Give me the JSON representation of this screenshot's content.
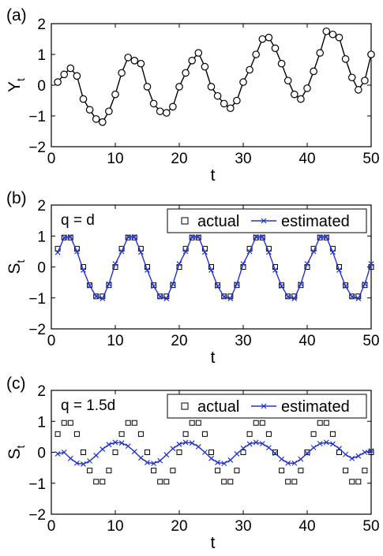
{
  "chart_data": [
    {
      "type": "line",
      "panel_label": "(a)",
      "xlabel": "t",
      "ylabel": "Y",
      "ylabel_sub": "t",
      "xlim": [
        0,
        50
      ],
      "ylim": [
        -2,
        2
      ],
      "xticks": [
        0,
        10,
        20,
        30,
        40,
        50
      ],
      "yticks": [
        -2,
        -1,
        0,
        1,
        2
      ],
      "xtick_labels": [
        "0",
        "10",
        "20",
        "30",
        "40",
        "50"
      ],
      "ytick_labels": [
        "−2",
        "−1",
        "0",
        "1",
        "2"
      ],
      "grid": false,
      "series": [
        {
          "marker": "circle",
          "color": "#000000",
          "x": [
            1,
            2,
            3,
            4,
            5,
            6,
            7,
            8,
            9,
            10,
            11,
            12,
            13,
            14,
            15,
            16,
            17,
            18,
            19,
            20,
            21,
            22,
            23,
            24,
            25,
            26,
            27,
            28,
            29,
            30,
            31,
            32,
            33,
            34,
            35,
            36,
            37,
            38,
            39,
            40,
            41,
            42,
            43,
            44,
            45,
            46,
            47,
            48,
            49,
            50
          ],
          "y": [
            0.1,
            0.35,
            0.55,
            0.3,
            -0.45,
            -0.8,
            -1.1,
            -1.2,
            -0.85,
            -0.3,
            0.4,
            0.9,
            0.8,
            0.7,
            -0.05,
            -0.6,
            -0.85,
            -0.9,
            -0.7,
            -0.05,
            0.4,
            0.8,
            1.05,
            0.6,
            -0.05,
            -0.35,
            -0.6,
            -0.75,
            -0.5,
            0.1,
            0.5,
            1.0,
            1.5,
            1.55,
            1.2,
            0.7,
            0.15,
            -0.3,
            -0.45,
            -0.1,
            0.45,
            1.05,
            1.75,
            1.65,
            1.55,
            0.85,
            0.25,
            -0.15,
            0.15,
            1.0
          ]
        }
      ]
    },
    {
      "type": "line",
      "panel_label": "(b)",
      "annotation": "q = d",
      "xlabel": "t",
      "ylabel": "S",
      "ylabel_sub": "t",
      "xlim": [
        0,
        50
      ],
      "ylim": [
        -2,
        2
      ],
      "xticks": [
        0,
        10,
        20,
        30,
        40,
        50
      ],
      "yticks": [
        -2,
        -1,
        0,
        1,
        2
      ],
      "xtick_labels": [
        "0",
        "10",
        "20",
        "30",
        "40",
        "50"
      ],
      "ytick_labels": [
        "−2",
        "−1",
        "0",
        "1",
        "2"
      ],
      "legend_position": "top-right",
      "series": [
        {
          "name": "actual",
          "marker": "square",
          "color": "#000000",
          "x": [
            1,
            2,
            3,
            4,
            5,
            6,
            7,
            8,
            9,
            10,
            11,
            12,
            13,
            14,
            15,
            16,
            17,
            18,
            19,
            20,
            21,
            22,
            23,
            24,
            25,
            26,
            27,
            28,
            29,
            30,
            31,
            32,
            33,
            34,
            35,
            36,
            37,
            38,
            39,
            40,
            41,
            42,
            43,
            44,
            45,
            46,
            47,
            48,
            49,
            50
          ],
          "y": [
            0.59,
            0.95,
            0.95,
            0.59,
            0,
            -0.59,
            -0.95,
            -0.95,
            -0.59,
            0,
            0.59,
            0.95,
            0.95,
            0.59,
            0,
            -0.59,
            -0.95,
            -0.95,
            -0.59,
            0,
            0.59,
            0.95,
            0.95,
            0.59,
            0,
            -0.59,
            -0.95,
            -0.95,
            -0.59,
            0,
            0.59,
            0.95,
            0.95,
            0.59,
            0,
            -0.59,
            -0.95,
            -0.95,
            -0.59,
            0,
            0.59,
            0.95,
            0.95,
            0.59,
            0,
            -0.59,
            -0.95,
            -0.95,
            -0.59,
            0
          ]
        },
        {
          "name": "estimated",
          "marker": "x",
          "color": "#2233cc",
          "x": [
            1,
            2,
            3,
            4,
            5,
            6,
            7,
            8,
            9,
            10,
            11,
            12,
            13,
            14,
            15,
            16,
            17,
            18,
            19,
            20,
            21,
            22,
            23,
            24,
            25,
            26,
            27,
            28,
            29,
            30,
            31,
            32,
            33,
            34,
            35,
            36,
            37,
            38,
            39,
            40,
            41,
            42,
            43,
            44,
            45,
            46,
            47,
            48,
            49,
            50
          ],
          "y": [
            0.47,
            0.95,
            0.97,
            0.5,
            -0.1,
            -0.6,
            -0.95,
            -1.02,
            -0.55,
            0.1,
            0.5,
            0.97,
            0.97,
            0.48,
            -0.1,
            -0.62,
            -0.96,
            -1.02,
            -0.55,
            0.1,
            0.5,
            0.97,
            0.97,
            0.48,
            -0.1,
            -0.62,
            -0.96,
            -1.02,
            -0.55,
            0.1,
            0.5,
            0.97,
            0.97,
            0.48,
            -0.1,
            -0.62,
            -0.96,
            -1.02,
            -0.55,
            0.1,
            0.5,
            0.97,
            0.97,
            0.48,
            -0.1,
            -0.62,
            -0.96,
            -1.02,
            -0.55,
            0.1
          ]
        }
      ]
    },
    {
      "type": "line",
      "panel_label": "(c)",
      "annotation": "q = 1.5d",
      "xlabel": "t",
      "ylabel": "S",
      "ylabel_sub": "t",
      "xlim": [
        0,
        50
      ],
      "ylim": [
        -2,
        2
      ],
      "xticks": [
        0,
        10,
        20,
        30,
        40,
        50
      ],
      "yticks": [
        -2,
        -1,
        0,
        1,
        2
      ],
      "xtick_labels": [
        "0",
        "10",
        "20",
        "30",
        "40",
        "50"
      ],
      "ytick_labels": [
        "−2",
        "−1",
        "0",
        "1",
        "2"
      ],
      "legend_position": "top-right",
      "series": [
        {
          "name": "actual",
          "marker": "square",
          "color": "#000000",
          "x": [
            1,
            2,
            3,
            4,
            5,
            6,
            7,
            8,
            9,
            10,
            11,
            12,
            13,
            14,
            15,
            16,
            17,
            18,
            19,
            20,
            21,
            22,
            23,
            24,
            25,
            26,
            27,
            28,
            29,
            30,
            31,
            32,
            33,
            34,
            35,
            36,
            37,
            38,
            39,
            40,
            41,
            42,
            43,
            44,
            45,
            46,
            47,
            48,
            49,
            50
          ],
          "y": [
            0.59,
            0.95,
            0.95,
            0.59,
            0,
            -0.59,
            -0.95,
            -0.95,
            -0.59,
            0,
            0.59,
            0.95,
            0.95,
            0.59,
            0,
            -0.59,
            -0.95,
            -0.95,
            -0.59,
            0,
            0.59,
            0.95,
            0.95,
            0.59,
            0,
            -0.59,
            -0.95,
            -0.95,
            -0.59,
            0,
            0.59,
            0.95,
            0.95,
            0.59,
            0,
            -0.59,
            -0.95,
            -0.95,
            -0.59,
            0,
            0.59,
            0.95,
            0.95,
            0.59,
            0,
            -0.59,
            -0.95,
            -0.95,
            -0.59,
            0
          ]
        },
        {
          "name": "estimated",
          "marker": "x",
          "color": "#2233cc",
          "x": [
            1,
            2,
            3,
            4,
            5,
            6,
            7,
            8,
            9,
            10,
            11,
            12,
            13,
            14,
            15,
            16,
            17,
            18,
            19,
            20,
            21,
            22,
            23,
            24,
            25,
            26,
            27,
            28,
            29,
            30,
            31,
            32,
            33,
            34,
            35,
            36,
            37,
            38,
            39,
            40,
            41,
            42,
            43,
            44,
            45,
            46,
            47,
            48,
            49,
            50
          ],
          "y": [
            -0.05,
            0.0,
            -0.2,
            -0.35,
            -0.38,
            -0.28,
            -0.1,
            0.1,
            0.25,
            0.32,
            0.3,
            0.2,
            0.02,
            -0.18,
            -0.33,
            -0.36,
            -0.27,
            -0.08,
            0.12,
            0.26,
            0.32,
            0.3,
            0.18,
            0.0,
            -0.2,
            -0.33,
            -0.36,
            -0.25,
            -0.05,
            0.13,
            0.27,
            0.32,
            0.28,
            0.15,
            -0.03,
            -0.22,
            -0.35,
            -0.35,
            -0.22,
            -0.03,
            0.15,
            0.28,
            0.32,
            0.27,
            0.12,
            -0.07,
            -0.2,
            -0.12,
            0.0,
            0.05
          ]
        }
      ]
    }
  ]
}
